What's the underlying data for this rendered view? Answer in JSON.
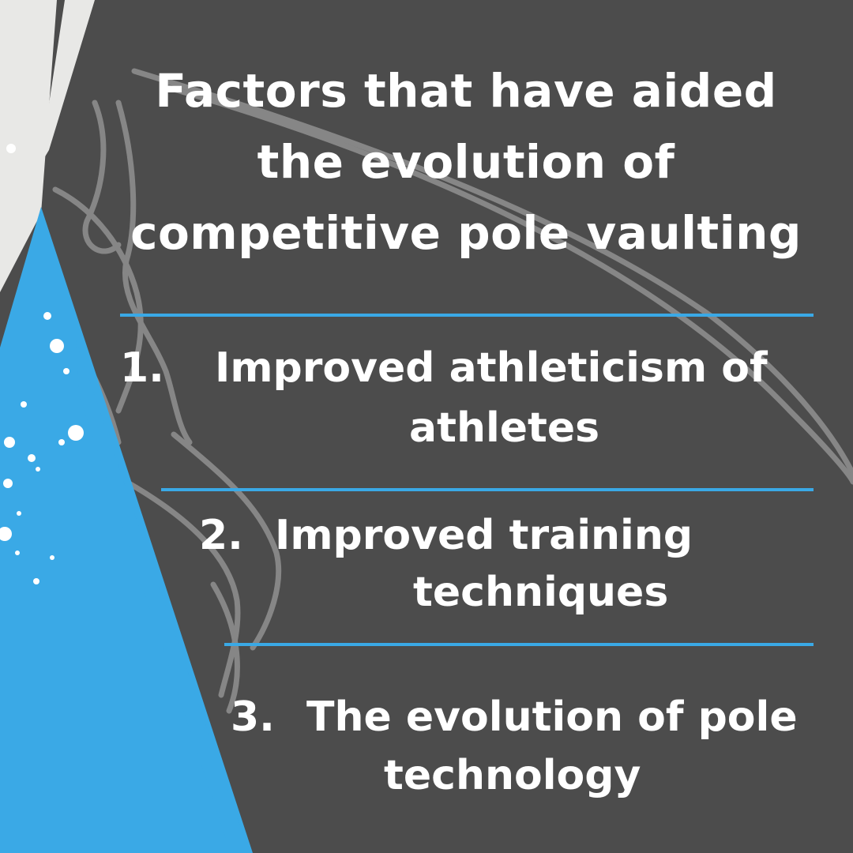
{
  "colors": {
    "background": "#4c4c4c",
    "accent_blue": "#3aa9e6",
    "pale_stripe": "#e8e8e6",
    "text": "#ffffff",
    "sketch_lines": "#9a9a9a"
  },
  "title": {
    "lines": [
      "Factors that have aided",
      "the evolution of",
      "competitive pole vaulting"
    ]
  },
  "items": [
    {
      "number": "1.",
      "lines": [
        "Improved athleticism of",
        "athletes"
      ]
    },
    {
      "number": "2.",
      "lines": [
        "Improved training",
        "techniques"
      ]
    },
    {
      "number": "3.",
      "lines": [
        "The evolution of pole",
        "technology"
      ]
    }
  ]
}
